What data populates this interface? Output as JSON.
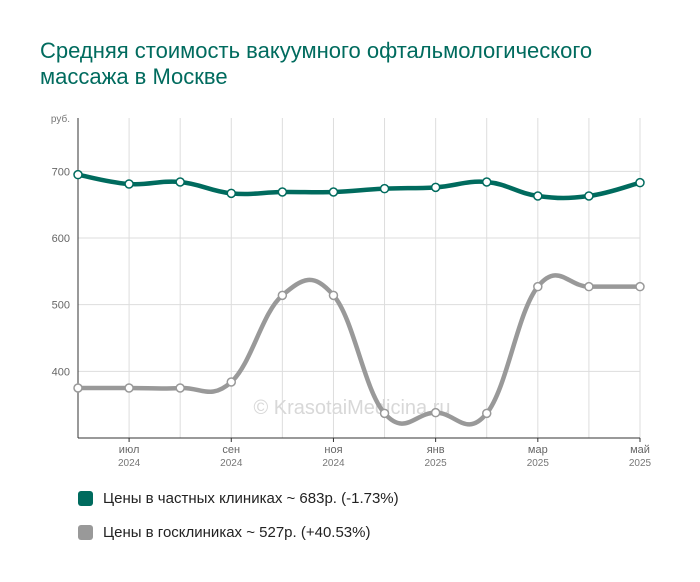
{
  "chart_data": {
    "type": "line",
    "title": "Средняя стоимость вакуумного офтальмологического массажа в Москве",
    "ylabel": "руб.",
    "xlabel": "",
    "ylim": [
      300,
      780
    ],
    "yticks": [
      400,
      500,
      600,
      700
    ],
    "x": [
      "2024-06",
      "2024-07",
      "2024-08",
      "2024-09",
      "2024-10",
      "2024-11",
      "2024-12",
      "2025-01",
      "2025-02",
      "2025-03",
      "2025-04",
      "2025-05"
    ],
    "x_ticks": [
      {
        "at": "2024-07",
        "label": "июл",
        "year": "2024"
      },
      {
        "at": "2024-09",
        "label": "сен",
        "year": "2024"
      },
      {
        "at": "2024-11",
        "label": "ноя",
        "year": "2024"
      },
      {
        "at": "2025-01",
        "label": "янв",
        "year": "2025"
      },
      {
        "at": "2025-03",
        "label": "мар",
        "year": "2025"
      },
      {
        "at": "2025-05",
        "label": "май",
        "year": "2025"
      }
    ],
    "grid": true,
    "legend_position": "bottom",
    "series": [
      {
        "name": "Цены в частных клиниках",
        "legend": "Цены в частных клиниках ~ 683р. (-1.73%)",
        "color": "#006b5e",
        "values": [
          695,
          681,
          684,
          667,
          669,
          669,
          674,
          676,
          684,
          663,
          663,
          683
        ]
      },
      {
        "name": "Цены в госклиниках",
        "legend": "Цены в госклиниках ~ 527р. (+40.53%)",
        "color": "#999999",
        "values": [
          375,
          375,
          375,
          384,
          514,
          514,
          337,
          338,
          337,
          527,
          527,
          527
        ]
      }
    ]
  },
  "watermark": "© KrasotaiMedicina.ru"
}
